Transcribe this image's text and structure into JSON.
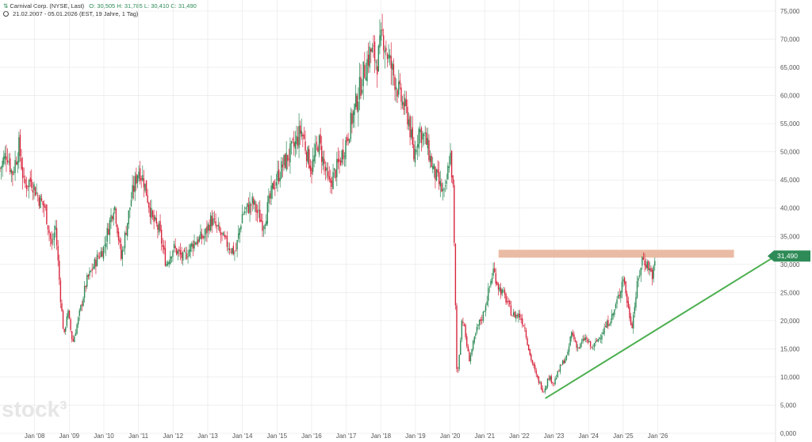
{
  "header": {
    "symbol_icon": "chart-pair-icon",
    "instrument": "Carnival Corp. (NYSE, Last)",
    "ohlc": "O: 30,505  H: 31,785  L: 30,410  C: 31,490",
    "period": "21.02.2007 - 05.01.2026",
    "period_info": "(EST, 19 Jahre, 1 Tag)"
  },
  "watermark": "stock³",
  "colors": {
    "up": "#2e8b57",
    "down": "#d7263d",
    "trendline": "#4caf50",
    "resistance_zone": "#e8b49a",
    "price_label_bg": "#2e8b57",
    "grid": "#e6e6e6"
  },
  "chart_data": {
    "type": "candlestick",
    "y_axis_side": "right",
    "ylim": [
      0,
      75
    ],
    "ytick_values": [
      0,
      5,
      10,
      15,
      20,
      25,
      30,
      35,
      40,
      45,
      50,
      55,
      60,
      65,
      70,
      75
    ],
    "ytick_labels": [
      "0,000",
      "5,000",
      "10,000",
      "15,000",
      "20,000",
      "25,000",
      "30,000",
      "35,000",
      "40,000",
      "45,000",
      "50,000",
      "55,000",
      "60,000",
      "65,000",
      "70,000",
      "75,000"
    ],
    "xlim": [
      2007.0,
      2029.4
    ],
    "xtick_values": [
      2008,
      2009,
      2010,
      2011,
      2012,
      2013,
      2014,
      2015,
      2016,
      2017,
      2018,
      2019,
      2020,
      2021,
      2022,
      2023,
      2024,
      2025,
      2026
    ],
    "xtick_labels": [
      "Jan '08",
      "Jan '09",
      "Jan '10",
      "Jan '11",
      "Jan '12",
      "Jan '13",
      "Jan '14",
      "Jan '15",
      "Jan '16",
      "Jan '17",
      "Jan '18",
      "Jan '19",
      "Jan '20",
      "Jan '21",
      "Jan '22",
      "Jan '23",
      "Jan '24",
      "Jan '25",
      "Jan '26"
    ],
    "grid": true,
    "last_price": 31.49,
    "last_price_label": "31,490",
    "price_path": [
      [
        2007.0,
        47
      ],
      [
        2007.2,
        50
      ],
      [
        2007.35,
        46
      ],
      [
        2007.55,
        51
      ],
      [
        2007.7,
        44
      ],
      [
        2007.9,
        45
      ],
      [
        2008.1,
        42
      ],
      [
        2008.3,
        40
      ],
      [
        2008.5,
        33
      ],
      [
        2008.6,
        37
      ],
      [
        2008.75,
        24
      ],
      [
        2008.85,
        17
      ],
      [
        2008.95,
        22
      ],
      [
        2009.1,
        16
      ],
      [
        2009.25,
        20
      ],
      [
        2009.5,
        27
      ],
      [
        2009.8,
        31
      ],
      [
        2010.0,
        33
      ],
      [
        2010.3,
        41
      ],
      [
        2010.5,
        31
      ],
      [
        2010.8,
        42
      ],
      [
        2011.0,
        47
      ],
      [
        2011.15,
        45
      ],
      [
        2011.4,
        38
      ],
      [
        2011.6,
        36
      ],
      [
        2011.8,
        30
      ],
      [
        2012.0,
        33
      ],
      [
        2012.3,
        31
      ],
      [
        2012.6,
        34
      ],
      [
        2012.9,
        35
      ],
      [
        2013.1,
        38
      ],
      [
        2013.3,
        36
      ],
      [
        2013.5,
        34
      ],
      [
        2013.8,
        32
      ],
      [
        2014.0,
        39
      ],
      [
        2014.3,
        41
      ],
      [
        2014.6,
        37
      ],
      [
        2014.9,
        44
      ],
      [
        2015.2,
        48
      ],
      [
        2015.5,
        51
      ],
      [
        2015.7,
        54
      ],
      [
        2015.9,
        49
      ],
      [
        2016.0,
        47
      ],
      [
        2016.2,
        52
      ],
      [
        2016.5,
        44
      ],
      [
        2016.8,
        48
      ],
      [
        2017.0,
        52
      ],
      [
        2017.3,
        59
      ],
      [
        2017.5,
        64
      ],
      [
        2017.7,
        68
      ],
      [
        2017.9,
        66
      ],
      [
        2018.05,
        71
      ],
      [
        2018.2,
        67
      ],
      [
        2018.4,
        63
      ],
      [
        2018.6,
        59
      ],
      [
        2018.8,
        56
      ],
      [
        2018.95,
        49
      ],
      [
        2019.1,
        54
      ],
      [
        2019.3,
        52
      ],
      [
        2019.5,
        47
      ],
      [
        2019.7,
        44
      ],
      [
        2019.85,
        42
      ],
      [
        2020.0,
        50
      ],
      [
        2020.08,
        44
      ],
      [
        2020.12,
        33
      ],
      [
        2020.2,
        9
      ],
      [
        2020.35,
        21
      ],
      [
        2020.55,
        13
      ],
      [
        2020.8,
        19
      ],
      [
        2020.95,
        21
      ],
      [
        2021.1,
        25
      ],
      [
        2021.25,
        29
      ],
      [
        2021.4,
        26
      ],
      [
        2021.6,
        24
      ],
      [
        2021.8,
        21
      ],
      [
        2022.0,
        21
      ],
      [
        2022.15,
        19
      ],
      [
        2022.3,
        14
      ],
      [
        2022.5,
        10
      ],
      [
        2022.7,
        7.5
      ],
      [
        2022.85,
        10
      ],
      [
        2023.0,
        9
      ],
      [
        2023.2,
        12
      ],
      [
        2023.4,
        14
      ],
      [
        2023.5,
        18
      ],
      [
        2023.7,
        15
      ],
      [
        2023.9,
        17
      ],
      [
        2024.1,
        15
      ],
      [
        2024.3,
        17
      ],
      [
        2024.5,
        19
      ],
      [
        2024.7,
        21
      ],
      [
        2024.9,
        25
      ],
      [
        2025.0,
        28
      ],
      [
        2025.15,
        22
      ],
      [
        2025.25,
        19
      ],
      [
        2025.4,
        26
      ],
      [
        2025.55,
        31
      ],
      [
        2025.7,
        30
      ],
      [
        2025.85,
        28
      ],
      [
        2025.95,
        31.5
      ]
    ],
    "resistance_zone": {
      "x_start": 2021.4,
      "x_end": 2028.2,
      "y_low": 31.2,
      "y_high": 32.6
    },
    "trendline": {
      "points": [
        [
          2022.75,
          6.2
        ],
        [
          2029.4,
          31.49
        ]
      ]
    }
  }
}
